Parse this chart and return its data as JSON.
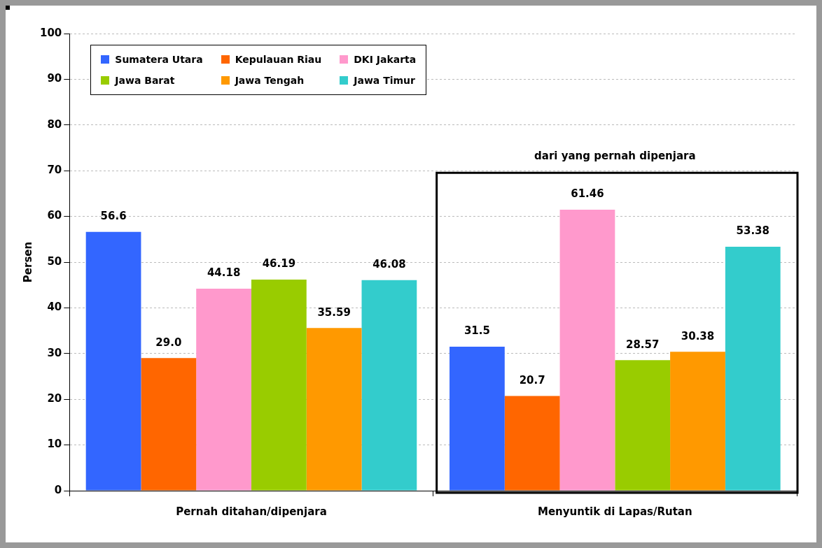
{
  "chart_data": {
    "type": "bar",
    "ylabel": "Persen",
    "categories": [
      "Pernah ditahan/dipenjara",
      "Menyuntik di Lapas/Rutan"
    ],
    "series": [
      {
        "name": "Sumatera Utara",
        "color": "#3366ff",
        "values": [
          56.6,
          31.5
        ],
        "value_labels": [
          "56.6",
          "31.5"
        ]
      },
      {
        "name": "Kepulauan Riau",
        "color": "#ff6600",
        "values": [
          29.0,
          20.7
        ],
        "value_labels": [
          "29.0",
          "20.7"
        ]
      },
      {
        "name": "DKI Jakarta",
        "color": "#ff99cc",
        "values": [
          44.18,
          61.46
        ],
        "value_labels": [
          "44.18",
          "61.46"
        ]
      },
      {
        "name": "Jawa Barat",
        "color": "#99cc00",
        "values": [
          46.19,
          28.57
        ],
        "value_labels": [
          "46.19",
          "28.57"
        ]
      },
      {
        "name": "Jawa Tengah",
        "color": "#ff9900",
        "values": [
          35.59,
          30.38
        ],
        "value_labels": [
          "35.59",
          "30.38"
        ]
      },
      {
        "name": "Jawa Timur",
        "color": "#33cccc",
        "values": [
          46.08,
          53.38
        ],
        "value_labels": [
          "46.08",
          "53.38"
        ]
      }
    ],
    "ylim": [
      0,
      100
    ],
    "yticks": [
      0,
      10,
      20,
      30,
      40,
      50,
      60,
      70,
      80,
      90,
      100
    ],
    "grid": "y",
    "legend": "top left",
    "annotations": [
      "dari yang pernah dipenjara"
    ]
  }
}
